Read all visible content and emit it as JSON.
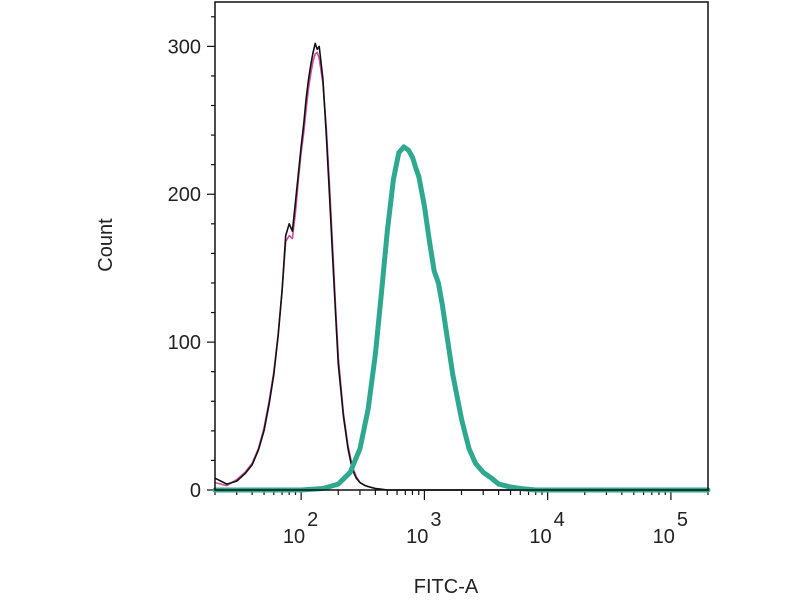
{
  "chart_data": {
    "type": "line",
    "title": "",
    "xlabel": "FITC-A",
    "ylabel": "Count",
    "x_scale": "log",
    "xlim": [
      20,
      200000
    ],
    "ylim": [
      0,
      330
    ],
    "grid": false,
    "legend": "none",
    "y_ticks": [
      {
        "value": 0,
        "label": "0"
      },
      {
        "value": 100,
        "label": "100"
      },
      {
        "value": 200,
        "label": "200"
      },
      {
        "value": 300,
        "label": "300"
      }
    ],
    "x_ticks": [
      {
        "value": 100,
        "base": "10",
        "exp": "2"
      },
      {
        "value": 1000,
        "base": "10",
        "exp": "3"
      },
      {
        "value": 10000,
        "base": "10",
        "exp": "4"
      },
      {
        "value": 100000,
        "base": "10",
        "exp": "5"
      }
    ],
    "series": [
      {
        "color": "#d14aa0",
        "width": 1.6,
        "x": [
          20,
          25,
          30,
          35,
          40,
          45,
          50,
          55,
          60,
          65,
          70,
          75,
          80,
          85,
          90,
          95,
          100,
          105,
          110,
          115,
          120,
          125,
          130,
          135,
          140,
          150,
          160,
          170,
          180,
          190,
          200,
          220,
          240,
          260,
          280,
          300,
          330,
          360,
          400,
          500,
          1000,
          10000,
          200000
        ],
        "y": [
          5,
          3,
          7,
          12,
          18,
          28,
          42,
          60,
          80,
          105,
          135,
          168,
          172,
          170,
          188,
          210,
          228,
          242,
          258,
          272,
          282,
          290,
          295,
          296,
          292,
          275,
          245,
          205,
          165,
          125,
          90,
          52,
          30,
          16,
          9,
          5,
          3,
          2,
          1,
          0,
          0,
          0,
          0
        ]
      },
      {
        "color": "#111111",
        "width": 1.6,
        "x": [
          20,
          25,
          30,
          35,
          40,
          45,
          50,
          55,
          60,
          65,
          70,
          75,
          80,
          85,
          90,
          95,
          100,
          105,
          110,
          115,
          120,
          125,
          130,
          135,
          140,
          150,
          160,
          170,
          180,
          190,
          200,
          220,
          240,
          260,
          280,
          300,
          330,
          360,
          400,
          500,
          1000,
          10000,
          200000
        ],
        "y": [
          8,
          4,
          6,
          11,
          17,
          27,
          40,
          58,
          78,
          104,
          135,
          172,
          180,
          175,
          195,
          214,
          232,
          248,
          265,
          278,
          288,
          296,
          302,
          298,
          300,
          278,
          240,
          198,
          158,
          120,
          85,
          50,
          28,
          14,
          8,
          5,
          3,
          2,
          1,
          0,
          0,
          0,
          0
        ]
      },
      {
        "color": "#2ea88e",
        "width": 5,
        "x": [
          20,
          100,
          150,
          200,
          250,
          300,
          350,
          400,
          450,
          500,
          560,
          620,
          680,
          740,
          800,
          850,
          900,
          1000,
          1100,
          1200,
          1300,
          1400,
          1500,
          1700,
          2000,
          2300,
          2600,
          3000,
          3500,
          4000,
          5000,
          6000,
          8000,
          200000
        ],
        "y": [
          0,
          0,
          1,
          4,
          12,
          28,
          55,
          92,
          135,
          175,
          210,
          228,
          232,
          230,
          225,
          218,
          212,
          192,
          168,
          148,
          140,
          125,
          108,
          78,
          48,
          28,
          18,
          12,
          8,
          4,
          2,
          1,
          0,
          0
        ]
      }
    ]
  }
}
